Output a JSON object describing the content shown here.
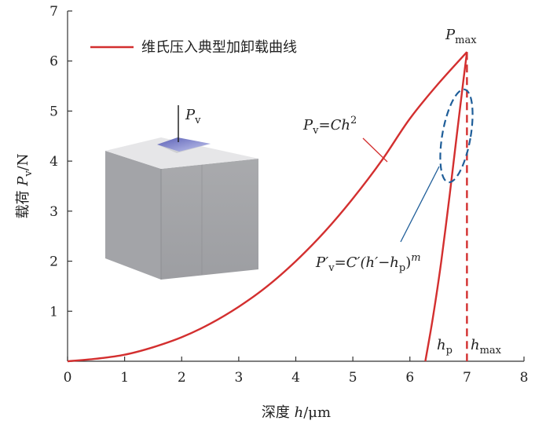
{
  "chart_data": {
    "type": "line",
    "legend": {
      "label": "维氏压入典型加卸载曲线",
      "position": "top-left",
      "color": "#d32f2f"
    },
    "xlabel": {
      "prefix": "深度 ",
      "var": "h",
      "unit": "/μm"
    },
    "ylabel": {
      "prefix": "载荷 ",
      "var": "P",
      "sub": "v",
      "unit": "/N"
    },
    "xlim": [
      0,
      8
    ],
    "ylim": [
      0,
      7
    ],
    "xticks": [
      "0",
      "1",
      "2",
      "3",
      "4",
      "5",
      "6",
      "7",
      "8"
    ],
    "yticks": [
      "0",
      "1",
      "2",
      "3",
      "4",
      "5",
      "6",
      "7"
    ],
    "series": [
      {
        "role": "loading",
        "color": "#d32f2f",
        "x": [
          0,
          0.5,
          1,
          1.5,
          2,
          2.5,
          3,
          3.5,
          4,
          4.5,
          5,
          5.5,
          6,
          6.5,
          7
        ],
        "y": [
          0,
          0.05,
          0.13,
          0.28,
          0.48,
          0.75,
          1.09,
          1.5,
          2.0,
          2.58,
          3.25,
          4.0,
          4.85,
          5.55,
          6.18
        ]
      },
      {
        "role": "unloading",
        "color": "#d32f2f",
        "x": [
          6.27,
          6.4,
          6.55,
          6.7,
          6.82,
          6.92,
          7.0
        ],
        "y": [
          0,
          0.85,
          2.0,
          3.35,
          4.5,
          5.45,
          6.18
        ]
      }
    ],
    "h_max_x": 7.0,
    "h_p_x": 6.27,
    "p_max_y": 6.18,
    "annotations": {
      "pmax": {
        "main": "P",
        "sub": "max"
      },
      "hp": {
        "main": "h",
        "sub": "p"
      },
      "hmax": {
        "main": "h",
        "sub": "max"
      },
      "loading_eq": {
        "p": "P",
        "sub": "v",
        "rhs": "=Ch",
        "sup": "2"
      },
      "unloading_eq": {
        "p": "P′",
        "sub": "v",
        "rhs1": "=C′(h′−h",
        "sub2": "p",
        "rhs2": ")",
        "sup": "m"
      },
      "inset_force": {
        "main": "P",
        "sub": "v"
      }
    }
  }
}
